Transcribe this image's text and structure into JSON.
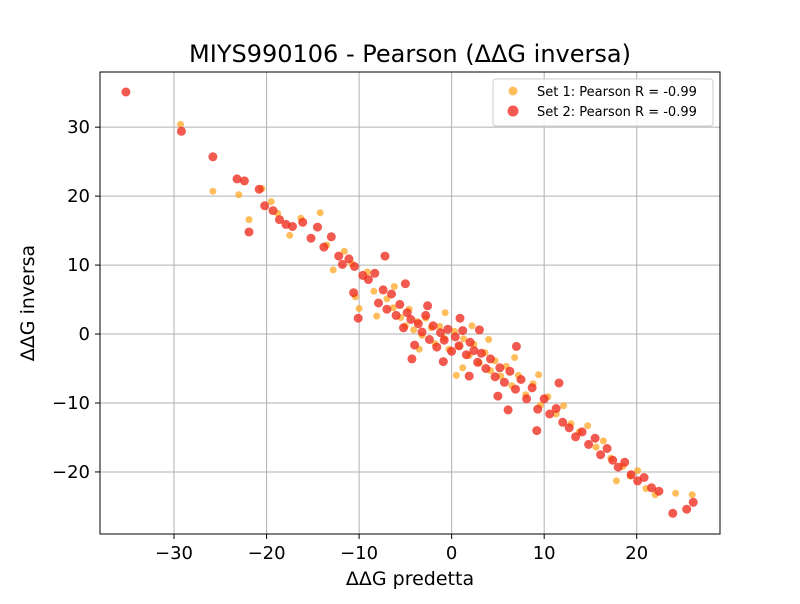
{
  "chart_data": {
    "type": "scatter",
    "title": "MIYS990106 - Pearson (ΔΔG inversa)",
    "xlabel": "ΔΔG predetta",
    "ylabel": "ΔΔG inversa",
    "xlim": [
      -38,
      29
    ],
    "ylim": [
      -29,
      38
    ],
    "xticks": [
      -30,
      -20,
      -10,
      0,
      10,
      20
    ],
    "yticks": [
      -20,
      -10,
      0,
      10,
      20,
      30
    ],
    "grid": true,
    "legend_position": "top-right",
    "series": [
      {
        "name": "Set 1: Pearson R = -0.99",
        "color": "#ffa726",
        "points": [
          [
            -29.3,
            30.4
          ],
          [
            -25.8,
            20.7
          ],
          [
            -23.0,
            20.2
          ],
          [
            -21.9,
            16.6
          ],
          [
            -20.5,
            21.1
          ],
          [
            -19.5,
            19.2
          ],
          [
            -18.8,
            17.5
          ],
          [
            -17.5,
            14.3
          ],
          [
            -16.3,
            16.8
          ],
          [
            -14.2,
            17.6
          ],
          [
            -13.5,
            12.9
          ],
          [
            -12.8,
            9.3
          ],
          [
            -11.6,
            12.0
          ],
          [
            -10.8,
            10.2
          ],
          [
            -10.4,
            5.4
          ],
          [
            -10.0,
            3.7
          ],
          [
            -9.1,
            9.0
          ],
          [
            -8.4,
            6.2
          ],
          [
            -7.0,
            5.1
          ],
          [
            -6.3,
            3.8
          ],
          [
            -5.5,
            2.4
          ],
          [
            -5.0,
            1.2
          ],
          [
            -4.6,
            3.6
          ],
          [
            -4.1,
            0.6
          ],
          [
            -3.7,
            1.8
          ],
          [
            -3.2,
            -0.2
          ],
          [
            -2.8,
            2.3
          ],
          [
            -2.2,
            0.9
          ],
          [
            -1.8,
            -1.4
          ],
          [
            -1.3,
            1.1
          ],
          [
            -0.8,
            -0.6
          ],
          [
            -0.3,
            -2.2
          ],
          [
            0.3,
            0.4
          ],
          [
            0.8,
            -1.8
          ],
          [
            1.3,
            -0.7
          ],
          [
            1.9,
            -3.1
          ],
          [
            2.4,
            -1.5
          ],
          [
            3.0,
            -4.2
          ],
          [
            3.6,
            -2.7
          ],
          [
            4.2,
            -5.3
          ],
          [
            4.7,
            -3.9
          ],
          [
            5.3,
            -6.1
          ],
          [
            5.9,
            -4.7
          ],
          [
            6.5,
            -7.5
          ],
          [
            7.2,
            -6.0
          ],
          [
            8.0,
            -8.8
          ],
          [
            8.8,
            -7.2
          ],
          [
            9.6,
            -10.3
          ],
          [
            10.4,
            -9.1
          ],
          [
            11.3,
            -11.6
          ],
          [
            12.1,
            -10.4
          ],
          [
            12.9,
            -13.0
          ],
          [
            13.8,
            -14.2
          ],
          [
            14.7,
            -13.3
          ],
          [
            15.6,
            -16.4
          ],
          [
            16.4,
            -15.5
          ],
          [
            17.2,
            -18.0
          ],
          [
            17.8,
            -21.3
          ],
          [
            18.5,
            -19.2
          ],
          [
            19.3,
            -20.6
          ],
          [
            20.1,
            -19.8
          ],
          [
            21.0,
            -22.4
          ],
          [
            22.0,
            -23.3
          ],
          [
            24.2,
            -23.1
          ],
          [
            26.0,
            -23.3
          ],
          [
            -3.5,
            -2.2
          ],
          [
            -0.7,
            3.1
          ],
          [
            2.2,
            1.2
          ],
          [
            1.2,
            -4.9
          ],
          [
            -6.2,
            6.9
          ],
          [
            4.0,
            -0.8
          ],
          [
            6.8,
            -3.4
          ],
          [
            -8.1,
            2.6
          ],
          [
            0.5,
            -6.0
          ],
          [
            9.4,
            -5.9
          ]
        ]
      },
      {
        "name": "Set 2: Pearson R = -0.99",
        "color": "#ee2a1e",
        "points": [
          [
            -35.2,
            35.1
          ],
          [
            -29.2,
            29.4
          ],
          [
            -25.8,
            25.7
          ],
          [
            -23.2,
            22.5
          ],
          [
            -22.4,
            22.2
          ],
          [
            -21.9,
            14.8
          ],
          [
            -20.8,
            21.0
          ],
          [
            -20.2,
            18.6
          ],
          [
            -19.3,
            17.9
          ],
          [
            -18.6,
            16.6
          ],
          [
            -17.9,
            15.9
          ],
          [
            -17.2,
            15.6
          ],
          [
            -16.1,
            16.2
          ],
          [
            -15.2,
            13.9
          ],
          [
            -14.5,
            15.5
          ],
          [
            -13.8,
            12.6
          ],
          [
            -13.0,
            14.1
          ],
          [
            -12.2,
            11.3
          ],
          [
            -11.8,
            10.1
          ],
          [
            -11.1,
            10.9
          ],
          [
            -10.5,
            9.8
          ],
          [
            -10.1,
            2.3
          ],
          [
            -9.6,
            8.5
          ],
          [
            -9.0,
            7.9
          ],
          [
            -8.3,
            8.8
          ],
          [
            -7.9,
            4.5
          ],
          [
            -7.4,
            6.4
          ],
          [
            -7.0,
            3.6
          ],
          [
            -6.5,
            5.8
          ],
          [
            -6.0,
            2.7
          ],
          [
            -5.6,
            4.3
          ],
          [
            -5.2,
            0.9
          ],
          [
            -4.8,
            3.1
          ],
          [
            -4.4,
            2.1
          ],
          [
            -4.0,
            -1.6
          ],
          [
            -3.6,
            1.5
          ],
          [
            -3.2,
            0.3
          ],
          [
            -2.8,
            2.7
          ],
          [
            -2.4,
            -0.8
          ],
          [
            -2.0,
            1.2
          ],
          [
            -1.6,
            -1.9
          ],
          [
            -1.2,
            0.2
          ],
          [
            -0.8,
            -0.9
          ],
          [
            -0.4,
            0.7
          ],
          [
            0.0,
            -2.5
          ],
          [
            0.4,
            -0.4
          ],
          [
            0.8,
            -1.7
          ],
          [
            1.2,
            0.5
          ],
          [
            1.6,
            -3.0
          ],
          [
            2.0,
            -1.2
          ],
          [
            2.4,
            -2.4
          ],
          [
            2.8,
            -4.1
          ],
          [
            3.2,
            -2.8
          ],
          [
            3.7,
            -5.0
          ],
          [
            4.2,
            -3.6
          ],
          [
            4.7,
            -6.2
          ],
          [
            5.2,
            -4.9
          ],
          [
            5.7,
            -7.0
          ],
          [
            6.3,
            -5.4
          ],
          [
            6.9,
            -8.0
          ],
          [
            7.5,
            -6.6
          ],
          [
            8.1,
            -9.4
          ],
          [
            8.7,
            -7.8
          ],
          [
            9.3,
            -10.9
          ],
          [
            10.0,
            -9.4
          ],
          [
            10.6,
            -11.6
          ],
          [
            11.3,
            -10.8
          ],
          [
            12.0,
            -12.8
          ],
          [
            12.7,
            -13.6
          ],
          [
            13.4,
            -14.9
          ],
          [
            14.1,
            -14.2
          ],
          [
            14.8,
            -16.0
          ],
          [
            15.5,
            -15.1
          ],
          [
            16.1,
            -17.5
          ],
          [
            16.8,
            -16.6
          ],
          [
            17.4,
            -18.3
          ],
          [
            18.0,
            -19.3
          ],
          [
            18.7,
            -18.6
          ],
          [
            19.4,
            -20.4
          ],
          [
            20.1,
            -21.3
          ],
          [
            20.8,
            -20.8
          ],
          [
            21.6,
            -22.3
          ],
          [
            22.4,
            -22.8
          ],
          [
            23.9,
            -26.0
          ],
          [
            25.4,
            -25.4
          ],
          [
            26.1,
            -24.4
          ],
          [
            9.2,
            -14.0
          ],
          [
            -0.9,
            -4.0
          ],
          [
            1.9,
            -6.1
          ],
          [
            -4.3,
            -3.6
          ],
          [
            -7.2,
            11.3
          ],
          [
            3.0,
            0.6
          ],
          [
            5.0,
            -9.0
          ],
          [
            -2.6,
            4.1
          ],
          [
            0.9,
            2.3
          ],
          [
            -10.6,
            6.0
          ],
          [
            -5.0,
            7.3
          ],
          [
            7.0,
            -1.8
          ],
          [
            11.6,
            -7.1
          ],
          [
            6.1,
            -11.0
          ]
        ]
      }
    ]
  }
}
